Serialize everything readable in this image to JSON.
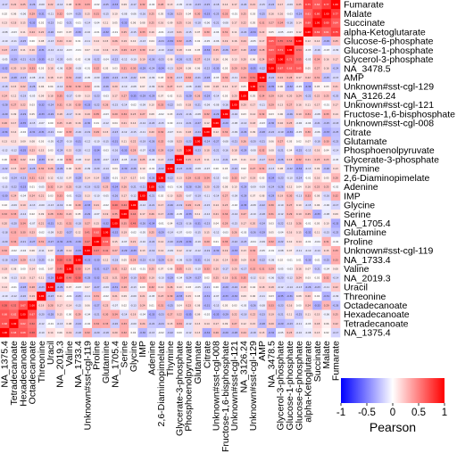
{
  "chart_data": {
    "type": "heatmap",
    "metric": "Pearson",
    "row_labels": [
      "Fumarate",
      "Malate",
      "Succinate",
      "alpha-Ketoglutarate",
      "Glucose-6-phosphate",
      "Glucose-1-phosphate",
      "Glycerol-3-phosphate",
      "NA_3478.5",
      "AMP",
      "Unknown#sst-cgl-129",
      "NA_3126.24",
      "Unknown#sst-cgl-121",
      "Fructose-1,6-bisphosphate",
      "Unknown#sst-cgl-008",
      "Citrate",
      "Glutamate",
      "Phosphoenolpyruvate",
      "Glycerate-3-phosphate",
      "Thymine",
      "2,6-Diaminopimelate",
      "Adenine",
      "IMP",
      "Glycine",
      "Serine",
      "NA_1705.4",
      "Glutamine",
      "Proline",
      "Unknown#sst-cgl-119",
      "NA_1733.4",
      "Valine",
      "NA_2019.3",
      "Uracil",
      "Threonine",
      "Octadecanoate",
      "Hexadecanoate",
      "Tetradecanoate",
      "NA_1375.4"
    ],
    "col_labels": [
      "NA_1375.4",
      "Tetradecanoate",
      "Hexadecanoate",
      "Octadecanoate",
      "Threonine",
      "Uracil",
      "NA_2019.3",
      "Valine",
      "NA_1733.4",
      "Unknown#sst-cgl-119",
      "Proline",
      "Glutamine",
      "NA_1705.4",
      "Serine",
      "Glycine",
      "IMP",
      "Adenine",
      "2,6-Diaminopimelate",
      "Thymine",
      "Glycerate-3-phosphate",
      "Phosphoenolpyruvate",
      "Glutamate",
      "Citrate",
      "Unknown#sst-cgl-008",
      "Fructose-1,6-bisphosphate",
      "Unknown#sst-cgl-121",
      "NA_3126.24",
      "Unknown#sst-cgl-129",
      "AMP",
      "NA_3478.5",
      "Glycerol-3-phosphate",
      "Glucose-1-phosphate",
      "Glucose-6-phosphate",
      "alpha-Ketoglutarate",
      "Succinate",
      "Malate",
      "Fumarate"
    ],
    "blocks": [
      {
        "members": [
          "Fumarate",
          "Malate",
          "Succinate",
          "alpha-Ketoglutarate"
        ],
        "r": 0.6
      },
      {
        "members": [
          "Glucose-6-phosphate",
          "Glucose-1-phosphate",
          "Glycerol-3-phosphate",
          "NA_3478.5"
        ],
        "r": 0.5
      },
      {
        "members": [
          "AMP",
          "Unknown#sst-cgl-129"
        ],
        "r": 0.4
      },
      {
        "members": [
          "Valine",
          "NA_1733.4",
          "NA_2019.3"
        ],
        "r": 0.4
      },
      {
        "members": [
          "Glutamine",
          "Proline",
          "Unknown#sst-cgl-119"
        ],
        "r": 0.4
      },
      {
        "members": [
          "Octadecanoate",
          "Hexadecanoate",
          "Tetradecanoate",
          "NA_1375.4"
        ],
        "r": 0.5
      },
      {
        "members": [
          "Glycine",
          "Serine",
          "NA_1705.4"
        ],
        "r": 0.3
      }
    ],
    "legend": {
      "ticks": [
        "-1",
        "-0.5",
        "0",
        "0.5",
        "1"
      ],
      "range": [
        -1,
        1
      ],
      "title": "Pearson",
      "low_color": "#0000ff",
      "mid_color": "#ffffff",
      "high_color": "#ff0000"
    }
  }
}
